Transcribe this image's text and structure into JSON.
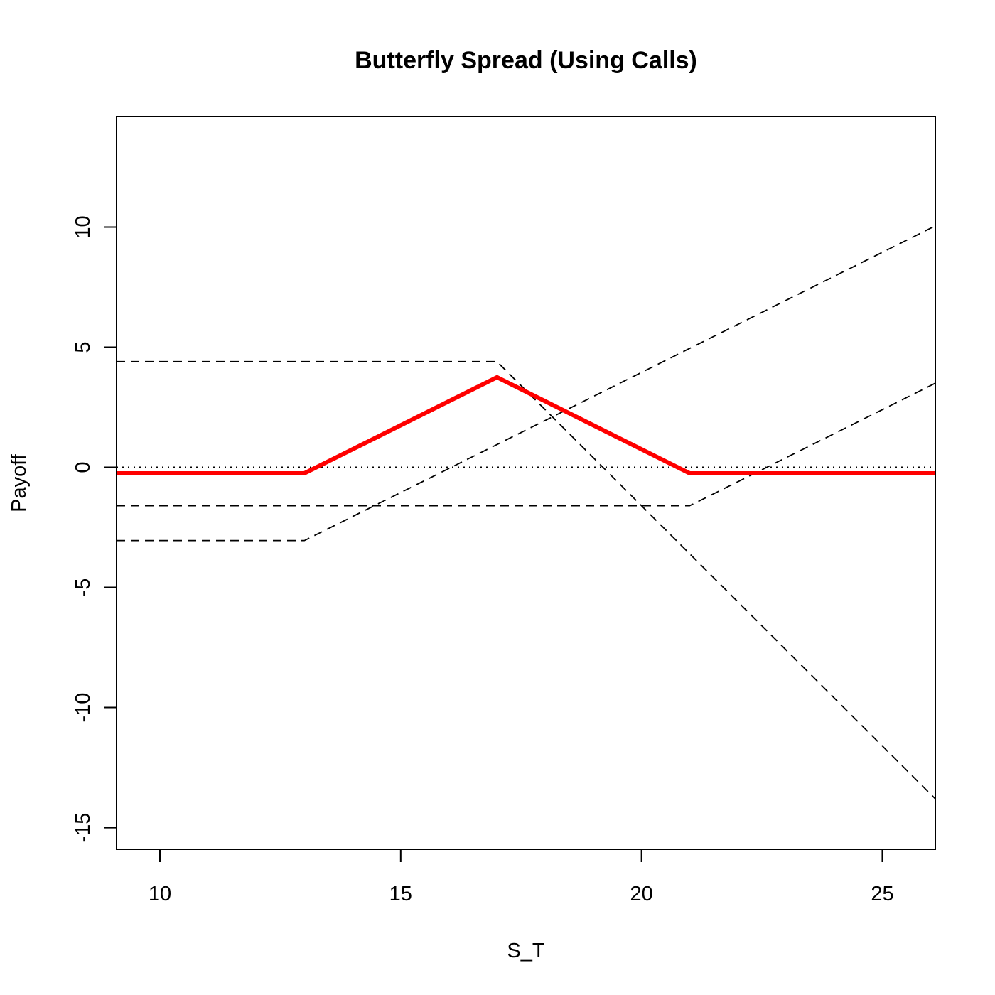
{
  "chart_data": {
    "type": "line",
    "title": "Butterfly Spread (Using Calls)",
    "xlabel": "S_T",
    "ylabel": "Payoff",
    "xlim": [
      9.1,
      26.1
    ],
    "ylim": [
      -15.9,
      14.6
    ],
    "x_ticks": [
      10,
      15,
      20,
      25
    ],
    "y_ticks": [
      -15,
      -10,
      -5,
      0,
      5,
      10
    ],
    "grid": false,
    "legend": "none",
    "reference_line": {
      "y": 0,
      "style": "dotted",
      "color": "#000000"
    },
    "series": [
      {
        "style": "dashed",
        "color": "#000000",
        "x": [
          9.1,
          13,
          26.1
        ],
        "y": [
          -3.05,
          -3.05,
          10.05
        ]
      },
      {
        "style": "dashed",
        "color": "#000000",
        "x": [
          9.1,
          17,
          26.1
        ],
        "y": [
          4.4,
          4.4,
          -13.8
        ]
      },
      {
        "style": "dashed",
        "color": "#000000",
        "x": [
          9.1,
          21,
          26.1
        ],
        "y": [
          -1.6,
          -1.6,
          3.5
        ]
      },
      {
        "style": "solid",
        "color": "#ff0000",
        "x": [
          9.1,
          13,
          17,
          21,
          26.1
        ],
        "y": [
          -0.25,
          -0.25,
          3.75,
          -0.25,
          -0.25
        ]
      }
    ]
  }
}
